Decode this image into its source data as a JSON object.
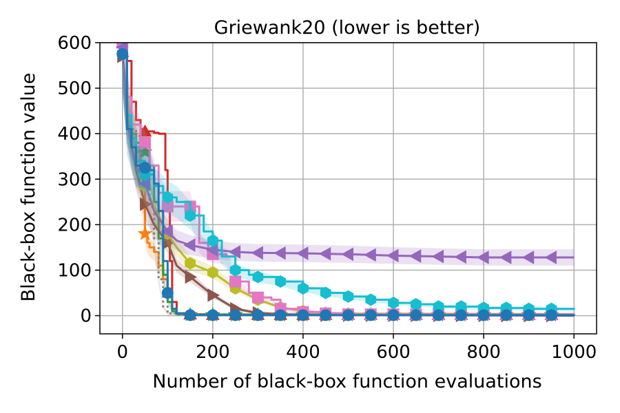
{
  "chart_data": {
    "type": "line",
    "title": "Griewank20 (lower is better)",
    "xlabel": "Number of black-box function evaluations",
    "ylabel": "Black-box function value",
    "xlim": [
      -50,
      1050
    ],
    "ylim": [
      -40,
      600
    ],
    "xticks": [
      0,
      200,
      400,
      600,
      800,
      1000
    ],
    "yticks": [
      0,
      100,
      200,
      300,
      400,
      500,
      600
    ],
    "grid": true,
    "legend": "none",
    "series": [
      {
        "color": "#d62728",
        "marker": "triangle-up",
        "step": true,
        "band": false,
        "x": [
          0,
          10,
          20,
          30,
          40,
          50,
          60,
          70,
          80,
          90,
          95,
          100,
          105,
          110,
          120,
          150,
          200,
          1000
        ],
        "y": [
          600,
          560,
          470,
          430,
          410,
          405,
          405,
          402,
          400,
          400,
          320,
          240,
          120,
          30,
          5,
          3,
          2,
          1
        ],
        "marker_x": [
          50,
          150,
          200,
          250,
          300,
          350,
          400,
          450,
          500,
          550,
          600,
          650,
          700,
          750,
          800,
          850,
          900,
          950
        ]
      },
      {
        "color": "#ff7f0e",
        "marker": "star",
        "step": true,
        "band": true,
        "x": [
          0,
          10,
          20,
          30,
          40,
          50,
          55,
          60,
          70,
          80,
          90,
          100,
          110,
          120,
          150,
          200,
          1000
        ],
        "y": [
          580,
          480,
          400,
          360,
          300,
          180,
          160,
          150,
          140,
          110,
          80,
          40,
          10,
          4,
          2,
          1,
          0
        ],
        "marker_x": [
          50,
          150,
          200,
          250,
          300,
          350,
          400,
          450,
          500,
          550,
          600,
          650,
          700,
          750,
          800,
          850,
          900,
          950
        ]
      },
      {
        "color": "#2ca02c",
        "marker": "star",
        "step": true,
        "band": true,
        "x": [
          0,
          10,
          20,
          30,
          40,
          50,
          60,
          70,
          80,
          90,
          100,
          110,
          120,
          150,
          200,
          1000
        ],
        "y": [
          590,
          440,
          400,
          380,
          370,
          360,
          330,
          250,
          170,
          90,
          30,
          10,
          4,
          2,
          2,
          1
        ],
        "marker_x": [
          50,
          150,
          200,
          250,
          300,
          350,
          400,
          450,
          500,
          550,
          600,
          650,
          700,
          750,
          800,
          850,
          900,
          950
        ]
      },
      {
        "color": "#7f7f7f",
        "marker": "none",
        "step": true,
        "band": true,
        "dotted": true,
        "x": [
          0,
          10,
          20,
          30,
          40,
          50,
          60,
          70,
          80,
          90,
          100,
          120,
          150,
          1000
        ],
        "y": [
          590,
          470,
          410,
          370,
          330,
          290,
          240,
          170,
          80,
          20,
          5,
          2,
          1,
          0
        ],
        "marker_x": []
      },
      {
        "color": "#8c564b",
        "marker": "triangle-right",
        "step": false,
        "band": true,
        "x": [
          0,
          10,
          20,
          30,
          50,
          70,
          100,
          120,
          150,
          200,
          250,
          300,
          350,
          400,
          450,
          500,
          1000
        ],
        "y": [
          570,
          450,
          380,
          320,
          245,
          200,
          160,
          110,
          85,
          45,
          15,
          6,
          3,
          2,
          1,
          1,
          0
        ],
        "marker_x": [
          0,
          50,
          100,
          150,
          200,
          250,
          300,
          350,
          400,
          450,
          500,
          550,
          600,
          650,
          700,
          750,
          800,
          850,
          900,
          950
        ]
      },
      {
        "color": "#bcbd22",
        "marker": "hexagon",
        "step": false,
        "band": true,
        "x": [
          0,
          10,
          20,
          30,
          50,
          70,
          100,
          120,
          150,
          200,
          250,
          300,
          350,
          400,
          450,
          500,
          1000
        ],
        "y": [
          575,
          450,
          380,
          330,
          285,
          240,
          180,
          150,
          115,
          95,
          60,
          35,
          18,
          10,
          6,
          4,
          3
        ],
        "marker_x": [
          50,
          100,
          150,
          200,
          250,
          300,
          350,
          400,
          450,
          500,
          550,
          600,
          650,
          700,
          750,
          800,
          850,
          900,
          950
        ]
      },
      {
        "color": "#e377c2",
        "marker": "square",
        "step": true,
        "band": true,
        "x": [
          0,
          10,
          20,
          40,
          60,
          80,
          100,
          120,
          140,
          150,
          170,
          190,
          200,
          230,
          250,
          280,
          300,
          330,
          350,
          400,
          450,
          500,
          1000
        ],
        "y": [
          600,
          480,
          420,
          380,
          330,
          270,
          240,
          240,
          240,
          240,
          160,
          140,
          135,
          130,
          75,
          50,
          40,
          35,
          15,
          8,
          5,
          3,
          2
        ],
        "marker_x": [
          0,
          50,
          100,
          150,
          200,
          250,
          300,
          350,
          400,
          450,
          500,
          550,
          600,
          650,
          700,
          750,
          800,
          850,
          900,
          950
        ]
      },
      {
        "color": "#9467bd",
        "marker": "triangle-left",
        "step": false,
        "band": true,
        "x": [
          0,
          10,
          20,
          30,
          50,
          70,
          100,
          120,
          150,
          200,
          250,
          300,
          400,
          500,
          600,
          700,
          800,
          900,
          1000
        ],
        "y": [
          590,
          440,
          370,
          330,
          290,
          230,
          185,
          165,
          155,
          145,
          140,
          138,
          137,
          135,
          132,
          130,
          128,
          128,
          128
        ],
        "marker_x": [
          0,
          50,
          100,
          150,
          200,
          250,
          300,
          350,
          400,
          450,
          500,
          550,
          600,
          650,
          700,
          750,
          800,
          850,
          900,
          950
        ]
      },
      {
        "color": "#17becf",
        "marker": "hexagon",
        "step": true,
        "band": true,
        "x": [
          0,
          10,
          20,
          30,
          50,
          70,
          90,
          100,
          120,
          150,
          180,
          200,
          220,
          250,
          280,
          300,
          350,
          400,
          450,
          500,
          550,
          600,
          650,
          700,
          800,
          900,
          1000
        ],
        "y": [
          575,
          440,
          390,
          340,
          310,
          285,
          270,
          260,
          250,
          220,
          185,
          165,
          130,
          100,
          90,
          85,
          75,
          60,
          50,
          42,
          35,
          28,
          25,
          20,
          17,
          15,
          13
        ],
        "marker_x": [
          0,
          50,
          100,
          150,
          200,
          250,
          300,
          350,
          400,
          450,
          500,
          550,
          600,
          650,
          700,
          750,
          800,
          850,
          900,
          950
        ]
      },
      {
        "color": "#1f77b4",
        "marker": "circle",
        "step": true,
        "band": true,
        "x": [
          0,
          10,
          20,
          30,
          40,
          50,
          60,
          70,
          80,
          90,
          100,
          110,
          120,
          150,
          1000
        ],
        "y": [
          575,
          410,
          370,
          330,
          325,
          325,
          320,
          290,
          230,
          120,
          50,
          15,
          5,
          1,
          0
        ],
        "marker_x": [
          0,
          50,
          100,
          150,
          200,
          250,
          300,
          350,
          400,
          450,
          500,
          550,
          600,
          650,
          700,
          750,
          800,
          850,
          900,
          950
        ]
      }
    ]
  }
}
